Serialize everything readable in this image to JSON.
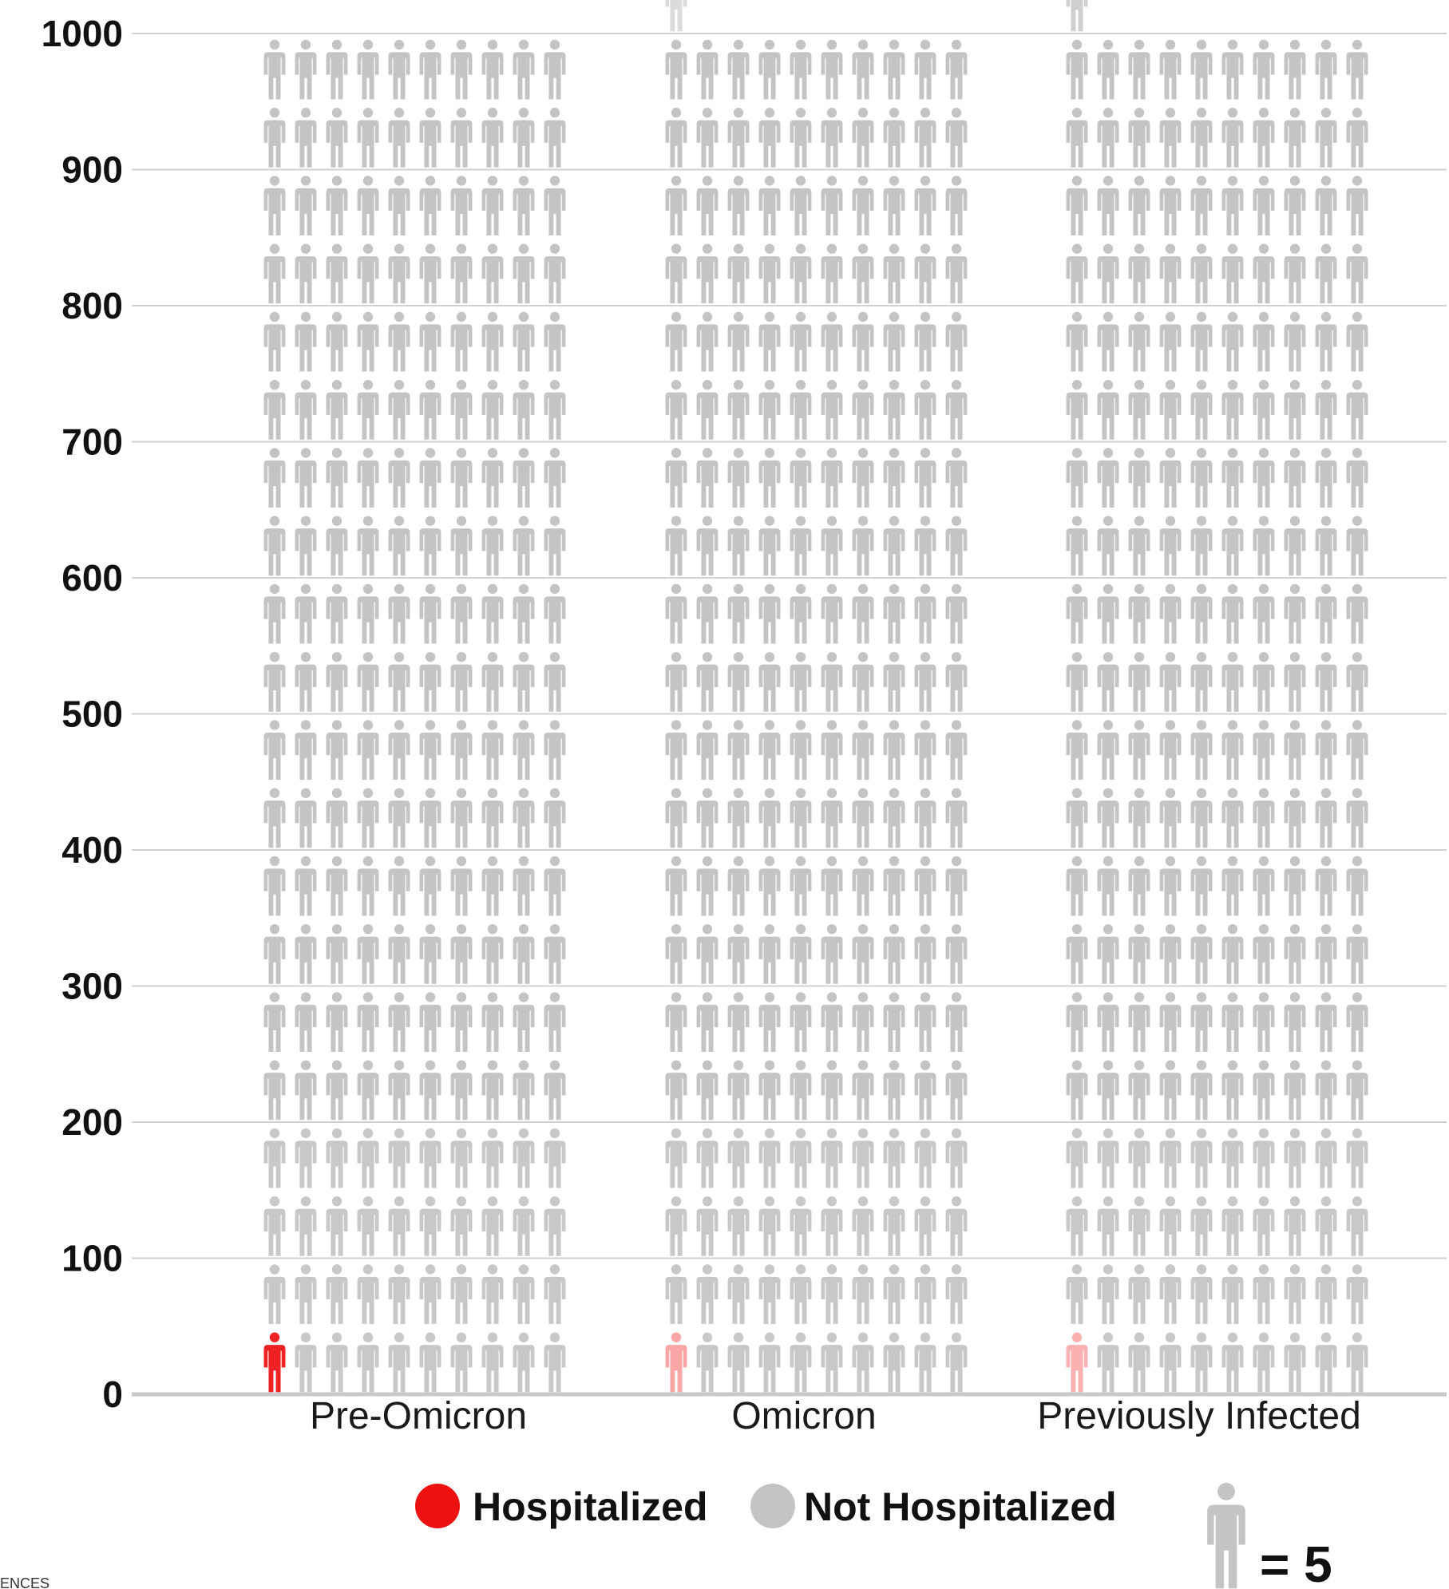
{
  "chart_data": {
    "type": "bar",
    "subtype": "pictograph",
    "categories": [
      "Pre-Omicron",
      "Omicron",
      "Previously Infected"
    ],
    "series": [
      {
        "name": "Hospitalized",
        "color": "#ee2222",
        "values": [
          5,
          2,
          1
        ]
      },
      {
        "name": "Not Hospitalized",
        "color": "#c4c4c4",
        "values": [
          995,
          998,
          999
        ]
      }
    ],
    "ylim": [
      0,
      1000
    ],
    "yticks": [
      0,
      100,
      200,
      300,
      400,
      500,
      600,
      700,
      800,
      900,
      1000
    ],
    "ytick_labels": [
      "0",
      "100",
      "200",
      "300",
      "400",
      "500",
      "600",
      "700",
      "800",
      "900",
      "1000"
    ],
    "icons_per_row": 10,
    "people_per_icon": 5,
    "grid": true,
    "legend": {
      "placement": "bottom",
      "items": [
        {
          "label": "Hospitalized",
          "color": "#ee1111"
        },
        {
          "label": "Not Hospitalized",
          "color": "#c4c4c4"
        }
      ],
      "scale_label": "= 5",
      "scale_icon": "person-icon"
    },
    "cut_text": "ENCES"
  }
}
